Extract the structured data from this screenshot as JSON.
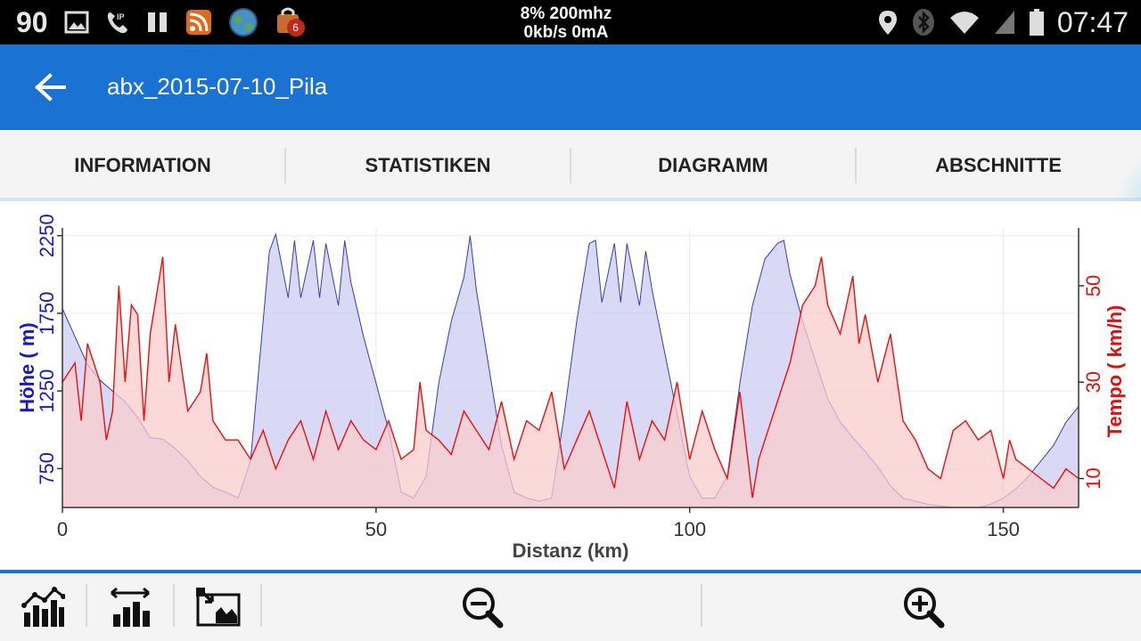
{
  "status_bar": {
    "left_number": "90",
    "cpu_line": "8% 200mhz",
    "net_line": "0kb/s 0mA",
    "notification_badge": "6",
    "time": "07:47",
    "icons": [
      "image-icon",
      "sip-phone-icon",
      "pause-icon",
      "rss-icon",
      "globe-icon",
      "bag-icon",
      "location-icon",
      "bluetooth-icon",
      "wifi-icon",
      "signal-icon",
      "battery-icon"
    ]
  },
  "app_bar": {
    "title": "abx_2015-07-10_Pila",
    "back_icon": "arrow-left-icon",
    "color": "#1a73d3"
  },
  "tabs": [
    {
      "label": "INFORMATION",
      "active": false
    },
    {
      "label": "STATISTIKEN",
      "active": false
    },
    {
      "label": "DIAGRAMM",
      "active": true
    },
    {
      "label": "ABSCHNITTE",
      "active": false
    }
  ],
  "chart_data": {
    "type": "area",
    "xlabel": "Distanz (km)",
    "xlim": [
      0,
      162
    ],
    "x_ticks": [
      0,
      50,
      100,
      150
    ],
    "grid": true,
    "series": [
      {
        "name": "Höhe",
        "axis": "left",
        "color": "#3a3ab0",
        "fill": "#ccccf2",
        "ylabel": "Höhe ( m)",
        "ylim": [
          500,
          2300
        ],
        "y_ticks": [
          750,
          1250,
          1750,
          2250
        ],
        "x": [
          0,
          2,
          4,
          6,
          8,
          10,
          12,
          14,
          16,
          18,
          20,
          22,
          24,
          26,
          28,
          30,
          32,
          33,
          34,
          36,
          37,
          38,
          40,
          41,
          42,
          44,
          45,
          46,
          48,
          50,
          52,
          54,
          56,
          58,
          60,
          62,
          64,
          65,
          66,
          68,
          70,
          72,
          74,
          76,
          78,
          80,
          82,
          84,
          85,
          86,
          88,
          89,
          90,
          92,
          93,
          94,
          96,
          98,
          100,
          102,
          104,
          106,
          108,
          110,
          112,
          114,
          115,
          116,
          118,
          120,
          122,
          124,
          126,
          128,
          130,
          132,
          134,
          136,
          138,
          140,
          142,
          144,
          146,
          148,
          150,
          152,
          154,
          156,
          158,
          160,
          162
        ],
        "values": [
          1780,
          1600,
          1420,
          1320,
          1250,
          1180,
          1080,
          950,
          940,
          880,
          800,
          700,
          630,
          600,
          560,
          800,
          1700,
          2150,
          2260,
          1850,
          2220,
          1850,
          2220,
          1850,
          2200,
          1800,
          2220,
          1950,
          1600,
          1300,
          1000,
          600,
          560,
          700,
          1300,
          1700,
          1980,
          2250,
          1900,
          1400,
          900,
          600,
          560,
          540,
          560,
          1100,
          1700,
          2200,
          2220,
          1820,
          2200,
          1820,
          2200,
          1800,
          2150,
          1900,
          1500,
          1100,
          700,
          560,
          560,
          700,
          1300,
          1800,
          2100,
          2200,
          2220,
          2000,
          1700,
          1450,
          1200,
          1050,
          950,
          860,
          760,
          640,
          560,
          540,
          520,
          510,
          500,
          500,
          500,
          520,
          560,
          620,
          700,
          800,
          900,
          1050,
          1150
        ]
      },
      {
        "name": "Tempo",
        "axis": "right",
        "color": "#e81010",
        "fill": "#f9cccc",
        "ylabel": "Tempo ( km/h)",
        "ylim": [
          4,
          62
        ],
        "y_ticks": [
          10,
          30,
          50
        ],
        "x": [
          0,
          2,
          3,
          4,
          6,
          7,
          8,
          9,
          10,
          11,
          12,
          13,
          14,
          16,
          17,
          18,
          20,
          22,
          23,
          24,
          26,
          28,
          30,
          32,
          34,
          36,
          38,
          40,
          42,
          44,
          46,
          48,
          50,
          52,
          54,
          56,
          57,
          58,
          60,
          62,
          64,
          66,
          68,
          70,
          72,
          74,
          76,
          78,
          80,
          82,
          84,
          86,
          88,
          90,
          92,
          94,
          96,
          98,
          100,
          102,
          104,
          106,
          108,
          110,
          111,
          112,
          114,
          116,
          118,
          120,
          121,
          122,
          124,
          126,
          127,
          128,
          130,
          132,
          134,
          136,
          138,
          140,
          142,
          144,
          146,
          148,
          150,
          151,
          152,
          154,
          156,
          158,
          160,
          162
        ],
        "values": [
          30,
          34,
          22,
          38,
          30,
          18,
          24,
          50,
          30,
          46,
          44,
          22,
          40,
          56,
          30,
          42,
          24,
          28,
          36,
          22,
          18,
          18,
          14,
          20,
          12,
          18,
          22,
          14,
          24,
          16,
          22,
          18,
          16,
          22,
          14,
          16,
          30,
          20,
          18,
          15,
          24,
          20,
          16,
          26,
          14,
          22,
          20,
          28,
          12,
          18,
          24,
          16,
          8,
          26,
          14,
          22,
          18,
          30,
          14,
          24,
          16,
          10,
          28,
          6,
          14,
          18,
          26,
          34,
          46,
          50,
          56,
          46,
          40,
          52,
          38,
          44,
          30,
          40,
          22,
          18,
          12,
          10,
          20,
          22,
          18,
          20,
          10,
          18,
          14,
          12,
          10,
          8,
          12,
          10
        ]
      }
    ]
  },
  "toolbar": {
    "items": [
      {
        "name": "line-chart-icon"
      },
      {
        "name": "range-chart-icon"
      },
      {
        "name": "map-export-icon"
      },
      {
        "name": "zoom-out-icon"
      },
      {
        "name": "zoom-in-icon"
      }
    ]
  }
}
